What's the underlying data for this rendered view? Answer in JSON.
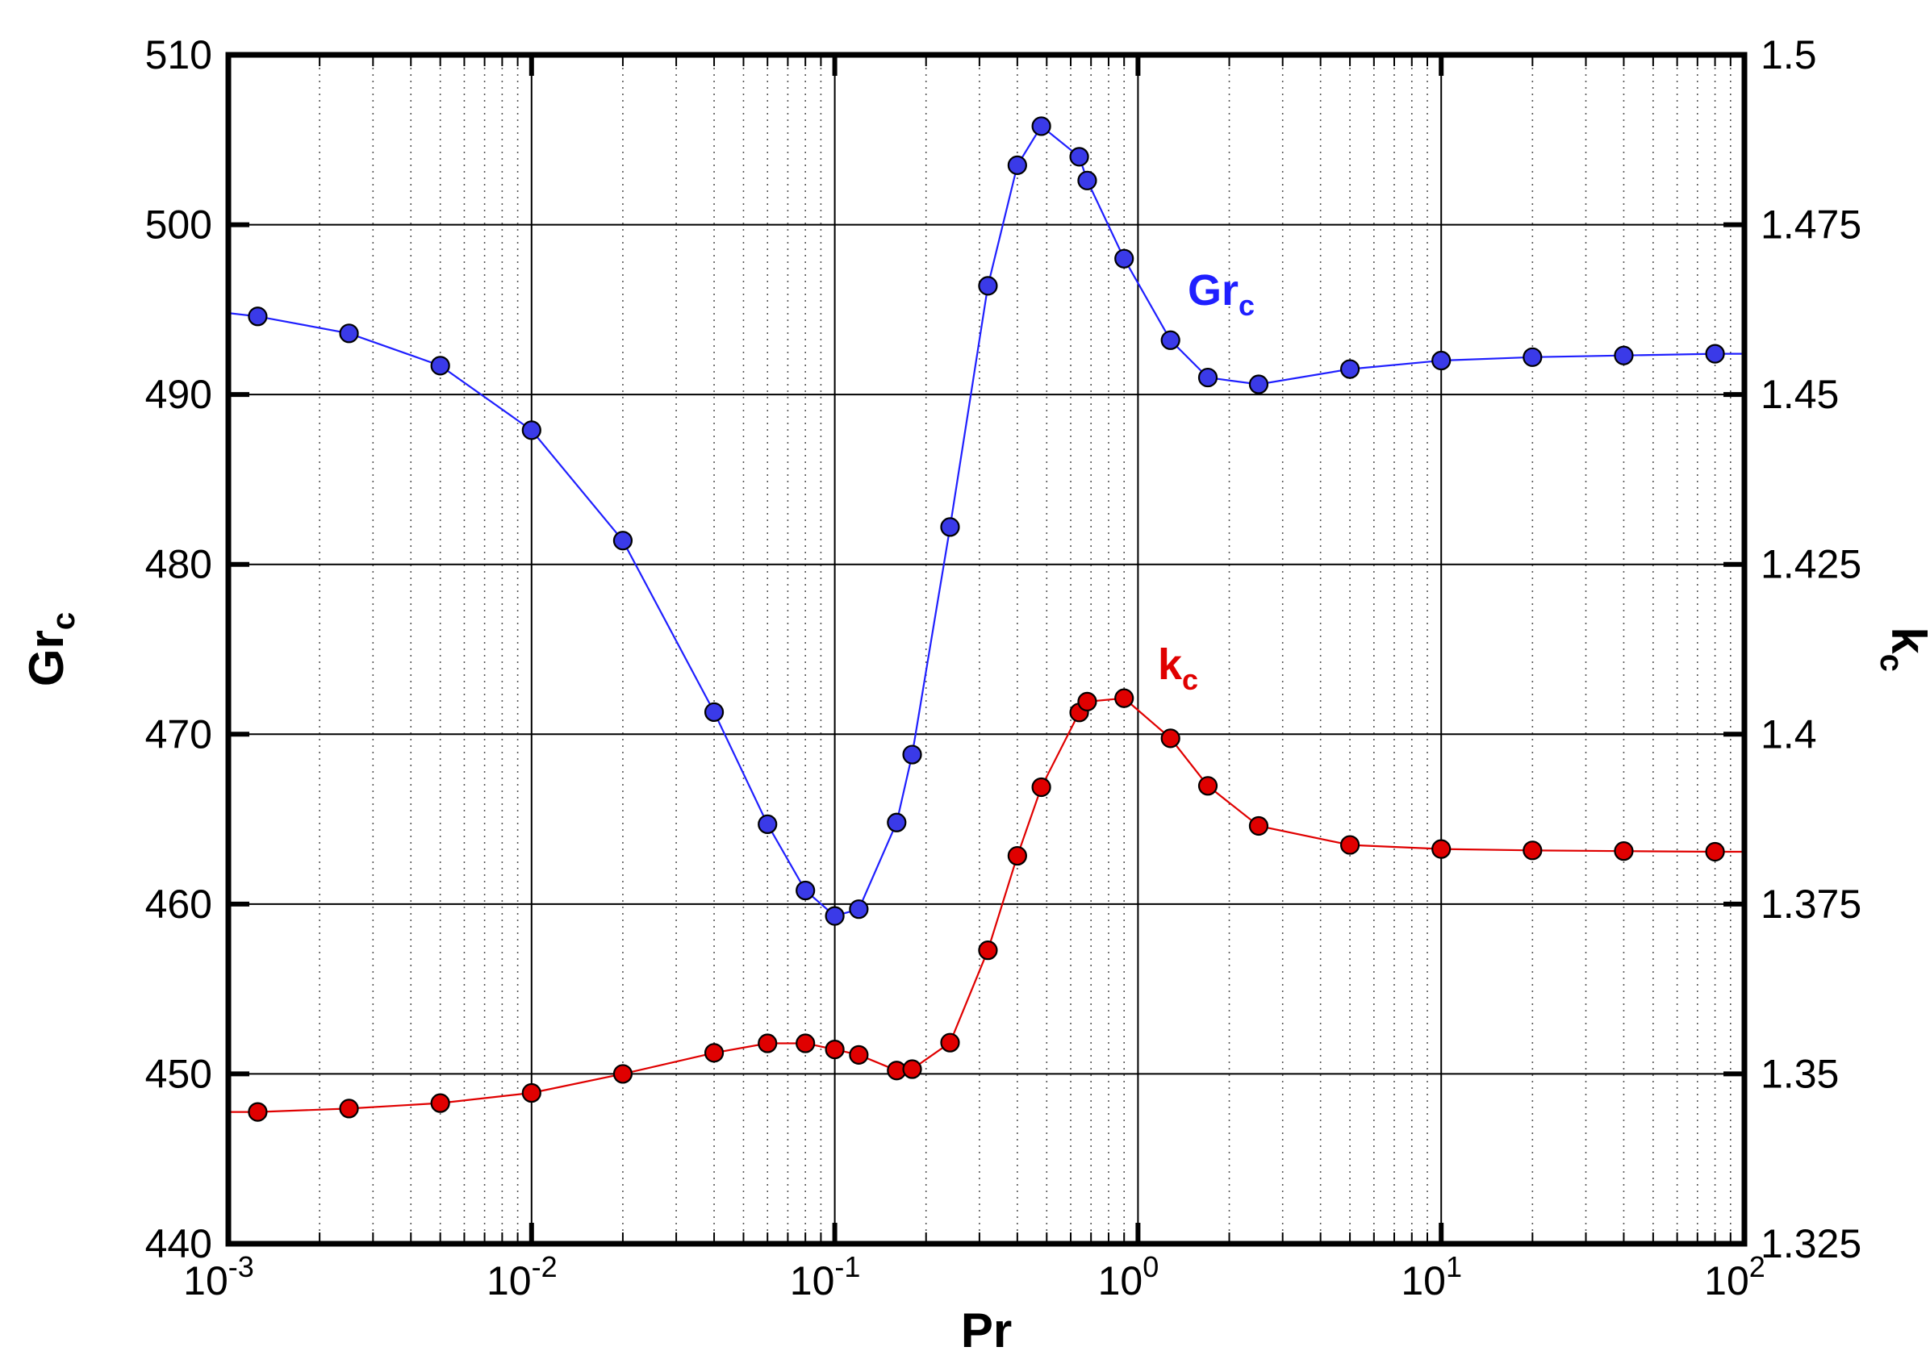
{
  "chart_data": {
    "type": "line",
    "x_scale": "log",
    "xlim": [
      0.001,
      100
    ],
    "x_ticks": [
      {
        "base": "10",
        "exp": "-3"
      },
      {
        "base": "10",
        "exp": "-2"
      },
      {
        "base": "10",
        "exp": "-1"
      },
      {
        "base": "10",
        "exp": "0"
      },
      {
        "base": "10",
        "exp": "1"
      },
      {
        "base": "10",
        "exp": "2"
      }
    ],
    "xlabel": "Pr",
    "y_left": {
      "label": {
        "main": "Gr",
        "sub": "c"
      },
      "lim": [
        440,
        510
      ],
      "ticks": [
        "440",
        "450",
        "460",
        "470",
        "480",
        "490",
        "500",
        "510"
      ]
    },
    "y_right": {
      "label": {
        "main": "k",
        "sub": "c"
      },
      "lim": [
        1.325,
        1.5
      ],
      "ticks": [
        "1.325",
        "1.35",
        "1.375",
        "1.4",
        "1.425",
        "1.45",
        "1.475",
        "1.5"
      ]
    },
    "grid": true,
    "series": [
      {
        "name": "Gr",
        "name_sub": "c",
        "axis": "left",
        "color": "#1f1fff",
        "marker_color": "#3a3ae8",
        "x": [
          0.00125,
          0.0025,
          0.005,
          0.01,
          0.02,
          0.04,
          0.06,
          0.08,
          0.1,
          0.12,
          0.16,
          0.18,
          0.24,
          0.32,
          0.4,
          0.48,
          0.64,
          0.68,
          0.9,
          1.28,
          1.7,
          2.5,
          5,
          10,
          20,
          40,
          80
        ],
        "y": [
          494.6,
          493.6,
          491.7,
          487.9,
          481.4,
          471.3,
          464.7,
          460.8,
          459.3,
          459.7,
          464.8,
          468.8,
          482.2,
          496.4,
          503.5,
          505.8,
          504.0,
          502.6,
          498.0,
          493.2,
          491.0,
          490.6,
          491.5,
          492.0,
          492.2,
          492.3,
          492.4
        ],
        "line_start": [
          0.001,
          494.8
        ],
        "line_end": [
          100,
          492.4
        ]
      },
      {
        "name": "k",
        "name_sub": "c",
        "axis": "right",
        "color": "#e00000",
        "marker_color": "#e00000",
        "x": [
          0.00125,
          0.0025,
          0.005,
          0.01,
          0.02,
          0.04,
          0.06,
          0.08,
          0.1,
          0.12,
          0.16,
          0.18,
          0.24,
          0.32,
          0.4,
          0.48,
          0.64,
          0.68,
          0.9,
          1.28,
          1.7,
          2.5,
          5,
          10,
          20,
          40,
          80
        ],
        "y": [
          1.3444,
          1.3449,
          1.3457,
          1.3472,
          1.35,
          1.3531,
          1.3545,
          1.3545,
          1.3536,
          1.3528,
          1.3505,
          1.3507,
          1.3546,
          1.3682,
          1.3821,
          1.3922,
          1.4032,
          1.4048,
          1.4053,
          1.3994,
          1.3924,
          1.3865,
          1.3837,
          1.3831,
          1.3829,
          1.3828,
          1.3827
        ],
        "line_start": [
          0.001,
          1.3444
        ],
        "line_end": [
          100,
          1.3827
        ]
      }
    ]
  }
}
